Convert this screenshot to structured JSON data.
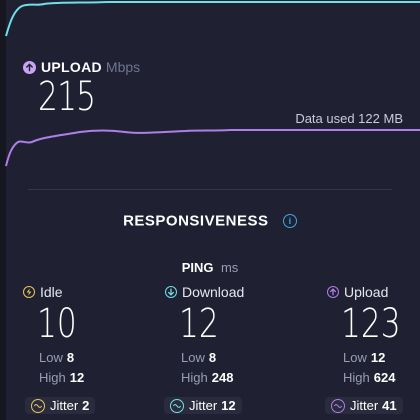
{
  "colors": {
    "background": "#1f2132",
    "download_accent": "#6fe0e6",
    "upload_accent": "#b07ee8",
    "idle_accent": "#e6c75a",
    "info_accent": "#3aa7e6",
    "muted_text": "#9a9db2"
  },
  "upload": {
    "label": "UPLOAD",
    "unit": "Mbps",
    "value": "215",
    "icon": "arrow-up-circle-icon"
  },
  "data_used": "Data used 122 MB",
  "responsiveness": {
    "title": "RESPONSIVENESS",
    "info_icon": "i"
  },
  "ping": {
    "label": "PING",
    "unit": "ms"
  },
  "columns": [
    {
      "name": "Idle",
      "icon": "bolt-circle-icon",
      "value": "10",
      "low_label": "Low",
      "low": "8",
      "high_label": "High",
      "high": "12",
      "jitter_label": "Jitter",
      "jitter": "2"
    },
    {
      "name": "Download",
      "icon": "arrow-down-circle-icon",
      "value": "12",
      "low_label": "Low",
      "low": "8",
      "high_label": "High",
      "high": "248",
      "jitter_label": "Jitter",
      "jitter": "12"
    },
    {
      "name": "Upload",
      "icon": "arrow-up-circle-icon",
      "value": "123",
      "low_label": "Low",
      "low": "12",
      "high_label": "High",
      "high": "624",
      "jitter_label": "Jitter",
      "jitter": "41"
    }
  ]
}
